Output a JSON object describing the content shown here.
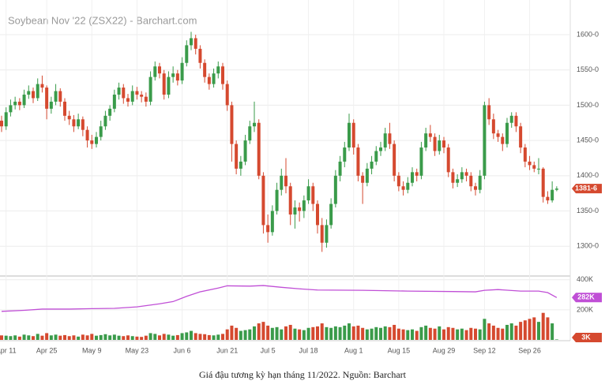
{
  "chart_data": {
    "type": "candlestick",
    "title": "Soybean Nov '22 (ZSX22) - Barchart.com",
    "caption": "Giá đậu tương kỳ hạn tháng 11/2022. Nguồn: Barchart",
    "up_color": "#3a9b4a",
    "down_color": "#d5492f",
    "oi_color": "#c04fd6",
    "grid": true,
    "ylim": [
      1260,
      1638
    ],
    "yticks": [
      {
        "value": 1300,
        "label": "1300-0"
      },
      {
        "value": 1350,
        "label": "1350-0"
      },
      {
        "value": 1400,
        "label": "1400-0"
      },
      {
        "value": 1450,
        "label": "1450-0"
      },
      {
        "value": 1500,
        "label": "1500-0"
      },
      {
        "value": 1550,
        "label": "1550-0"
      },
      {
        "value": 1600,
        "label": "1600-0"
      }
    ],
    "y2lim": [
      0,
      420000
    ],
    "y2ticks": [
      {
        "value": 200000,
        "label": "200K"
      },
      {
        "value": 400000,
        "label": "400K"
      }
    ],
    "xlim": [
      -0.35,
      126
    ],
    "xticks": [
      {
        "value": 1,
        "label": "Apr 11"
      },
      {
        "value": 10,
        "label": "Apr 25"
      },
      {
        "value": 20,
        "label": "May 9"
      },
      {
        "value": 30,
        "label": "May 23"
      },
      {
        "value": 40,
        "label": "Jun 6"
      },
      {
        "value": 50,
        "label": "Jun 21"
      },
      {
        "value": 59,
        "label": "Jul 5"
      },
      {
        "value": 68,
        "label": "Jul 18"
      },
      {
        "value": 78,
        "label": "Aug 1"
      },
      {
        "value": 88,
        "label": "Aug 15"
      },
      {
        "value": 98,
        "label": "Aug 29"
      },
      {
        "value": 107,
        "label": "Sep 12"
      },
      {
        "value": 117,
        "label": "Sep 26"
      }
    ],
    "ohlc": [
      [
        1478,
        1485,
        1462,
        1470
      ],
      [
        1470,
        1497,
        1465,
        1490
      ],
      [
        1490,
        1508,
        1484,
        1500
      ],
      [
        1500,
        1512,
        1494,
        1505
      ],
      [
        1505,
        1510,
        1493,
        1500
      ],
      [
        1500,
        1522,
        1496,
        1515
      ],
      [
        1515,
        1528,
        1509,
        1520
      ],
      [
        1520,
        1525,
        1503,
        1510
      ],
      [
        1510,
        1538,
        1506,
        1530
      ],
      [
        1530,
        1542,
        1518,
        1525
      ],
      [
        1525,
        1528,
        1480,
        1495
      ],
      [
        1495,
        1512,
        1488,
        1505
      ],
      [
        1505,
        1530,
        1500,
        1520
      ],
      [
        1520,
        1524,
        1498,
        1505
      ],
      [
        1505,
        1510,
        1478,
        1485
      ],
      [
        1485,
        1492,
        1472,
        1480
      ],
      [
        1480,
        1486,
        1462,
        1470
      ],
      [
        1470,
        1488,
        1466,
        1480
      ],
      [
        1480,
        1484,
        1456,
        1465
      ],
      [
        1465,
        1470,
        1440,
        1450
      ],
      [
        1450,
        1458,
        1438,
        1445
      ],
      [
        1445,
        1462,
        1440,
        1455
      ],
      [
        1455,
        1478,
        1450,
        1470
      ],
      [
        1470,
        1492,
        1465,
        1485
      ],
      [
        1485,
        1500,
        1478,
        1495
      ],
      [
        1495,
        1522,
        1490,
        1515
      ],
      [
        1515,
        1532,
        1508,
        1525
      ],
      [
        1525,
        1530,
        1502,
        1510
      ],
      [
        1510,
        1516,
        1498,
        1505
      ],
      [
        1505,
        1528,
        1500,
        1520
      ],
      [
        1520,
        1526,
        1508,
        1515
      ],
      [
        1515,
        1520,
        1504,
        1512
      ],
      [
        1512,
        1518,
        1498,
        1505
      ],
      [
        1505,
        1548,
        1500,
        1540
      ],
      [
        1540,
        1562,
        1535,
        1555
      ],
      [
        1555,
        1560,
        1538,
        1545
      ],
      [
        1545,
        1550,
        1508,
        1515
      ],
      [
        1515,
        1548,
        1510,
        1540
      ],
      [
        1540,
        1555,
        1532,
        1545
      ],
      [
        1545,
        1550,
        1528,
        1535
      ],
      [
        1535,
        1568,
        1530,
        1560
      ],
      [
        1560,
        1592,
        1555,
        1585
      ],
      [
        1585,
        1604,
        1578,
        1595
      ],
      [
        1595,
        1600,
        1572,
        1580
      ],
      [
        1580,
        1585,
        1552,
        1560
      ],
      [
        1560,
        1565,
        1532,
        1540
      ],
      [
        1540,
        1545,
        1522,
        1530
      ],
      [
        1530,
        1552,
        1525,
        1545
      ],
      [
        1545,
        1562,
        1538,
        1555
      ],
      [
        1555,
        1560,
        1522,
        1530
      ],
      [
        1530,
        1535,
        1492,
        1500
      ],
      [
        1500,
        1505,
        1420,
        1445
      ],
      [
        1445,
        1450,
        1402,
        1410
      ],
      [
        1410,
        1428,
        1400,
        1420
      ],
      [
        1420,
        1458,
        1415,
        1450
      ],
      [
        1450,
        1478,
        1445,
        1470
      ],
      [
        1470,
        1505,
        1462,
        1475
      ],
      [
        1475,
        1480,
        1395,
        1400
      ],
      [
        1400,
        1405,
        1318,
        1330
      ],
      [
        1330,
        1345,
        1305,
        1320
      ],
      [
        1320,
        1358,
        1315,
        1350
      ],
      [
        1350,
        1390,
        1345,
        1380
      ],
      [
        1380,
        1410,
        1372,
        1400
      ],
      [
        1400,
        1425,
        1375,
        1385
      ],
      [
        1385,
        1390,
        1330,
        1345
      ],
      [
        1345,
        1365,
        1325,
        1355
      ],
      [
        1355,
        1362,
        1335,
        1350
      ],
      [
        1350,
        1372,
        1340,
        1365
      ],
      [
        1365,
        1395,
        1360,
        1385
      ],
      [
        1385,
        1390,
        1350,
        1360
      ],
      [
        1360,
        1365,
        1318,
        1330
      ],
      [
        1330,
        1340,
        1292,
        1305
      ],
      [
        1305,
        1338,
        1298,
        1330
      ],
      [
        1330,
        1368,
        1325,
        1360
      ],
      [
        1360,
        1408,
        1355,
        1400
      ],
      [
        1400,
        1428,
        1392,
        1420
      ],
      [
        1420,
        1448,
        1412,
        1440
      ],
      [
        1440,
        1488,
        1435,
        1475
      ],
      [
        1475,
        1480,
        1430,
        1440
      ],
      [
        1440,
        1445,
        1392,
        1400
      ],
      [
        1400,
        1405,
        1360,
        1390
      ],
      [
        1390,
        1418,
        1385,
        1410
      ],
      [
        1410,
        1428,
        1402,
        1420
      ],
      [
        1420,
        1442,
        1415,
        1435
      ],
      [
        1435,
        1448,
        1428,
        1440
      ],
      [
        1440,
        1468,
        1435,
        1460
      ],
      [
        1460,
        1475,
        1438,
        1445
      ],
      [
        1445,
        1450,
        1392,
        1400
      ],
      [
        1400,
        1405,
        1378,
        1385
      ],
      [
        1385,
        1392,
        1372,
        1380
      ],
      [
        1380,
        1398,
        1375,
        1390
      ],
      [
        1390,
        1412,
        1385,
        1405
      ],
      [
        1405,
        1410,
        1392,
        1400
      ],
      [
        1400,
        1448,
        1395,
        1440
      ],
      [
        1440,
        1468,
        1435,
        1460
      ],
      [
        1460,
        1472,
        1448,
        1455
      ],
      [
        1455,
        1460,
        1428,
        1435
      ],
      [
        1435,
        1458,
        1430,
        1450
      ],
      [
        1450,
        1455,
        1432,
        1440
      ],
      [
        1440,
        1445,
        1398,
        1405
      ],
      [
        1405,
        1410,
        1382,
        1390
      ],
      [
        1390,
        1402,
        1384,
        1395
      ],
      [
        1395,
        1412,
        1390,
        1405
      ],
      [
        1405,
        1410,
        1392,
        1400
      ],
      [
        1400,
        1405,
        1378,
        1385
      ],
      [
        1385,
        1390,
        1372,
        1380
      ],
      [
        1380,
        1408,
        1375,
        1400
      ],
      [
        1400,
        1505,
        1395,
        1500
      ],
      [
        1500,
        1510,
        1472,
        1480
      ],
      [
        1480,
        1488,
        1452,
        1460
      ],
      [
        1460,
        1465,
        1448,
        1455
      ],
      [
        1455,
        1460,
        1435,
        1445
      ],
      [
        1445,
        1482,
        1440,
        1475
      ],
      [
        1475,
        1490,
        1468,
        1485
      ],
      [
        1485,
        1490,
        1462,
        1470
      ],
      [
        1470,
        1475,
        1432,
        1440
      ],
      [
        1440,
        1445,
        1412,
        1420
      ],
      [
        1420,
        1428,
        1408,
        1415
      ],
      [
        1415,
        1420,
        1405,
        1410
      ],
      [
        1410,
        1425,
        1402,
        1410
      ],
      [
        1410,
        1412,
        1362,
        1370
      ],
      [
        1370,
        1378,
        1360,
        1365
      ],
      [
        1365,
        1392,
        1362,
        1380
      ],
      [
        1380,
        1385,
        1378,
        1381.75
      ]
    ],
    "volume": [
      30000,
      28000,
      25000,
      30000,
      22000,
      35000,
      30000,
      25000,
      40000,
      28000,
      45000,
      30000,
      35000,
      28000,
      32000,
      25000,
      30000,
      22000,
      35000,
      30000,
      40000,
      28000,
      32000,
      38000,
      30000,
      35000,
      28000,
      25000,
      30000,
      25000,
      22000,
      20000,
      28000,
      45000,
      40000,
      30000,
      40000,
      35000,
      28000,
      32000,
      45000,
      50000,
      60000,
      45000,
      40000,
      38000,
      32000,
      30000,
      35000,
      40000,
      70000,
      95000,
      80000,
      60000,
      65000,
      70000,
      90000,
      110000,
      120000,
      95000,
      80000,
      85000,
      70000,
      90000,
      100000,
      75000,
      70000,
      65000,
      80000,
      85000,
      90000,
      110000,
      85000,
      80000,
      90000,
      85000,
      95000,
      110000,
      90000,
      95000,
      80000,
      70000,
      75000,
      85000,
      80000,
      90000,
      85000,
      100000,
      75000,
      70000,
      65000,
      70000,
      60000,
      85000,
      95000,
      80000,
      75000,
      90000,
      70000,
      85000,
      80000,
      70000,
      75000,
      65000,
      80000,
      75000,
      70000,
      140000,
      110000,
      95000,
      80000,
      75000,
      100000,
      110000,
      95000,
      120000,
      130000,
      140000,
      150000,
      120000,
      180000,
      150000,
      110000,
      3000
    ],
    "oi_x": [
      0,
      5,
      9,
      15,
      20,
      25,
      30,
      35,
      38,
      41,
      44,
      48,
      50,
      55,
      58,
      62,
      66,
      70,
      80,
      90,
      100,
      105,
      107,
      110,
      115,
      119,
      121,
      123
    ],
    "oi_values": [
      190000,
      197000,
      205000,
      205000,
      208000,
      210000,
      220000,
      240000,
      255000,
      290000,
      320000,
      345000,
      360000,
      358000,
      362000,
      350000,
      340000,
      332000,
      330000,
      325000,
      322000,
      320000,
      330000,
      335000,
      325000,
      325000,
      315000,
      282000
    ],
    "last_labels": {
      "price": "1381-6",
      "oi": "282K",
      "volume": "3K"
    }
  }
}
